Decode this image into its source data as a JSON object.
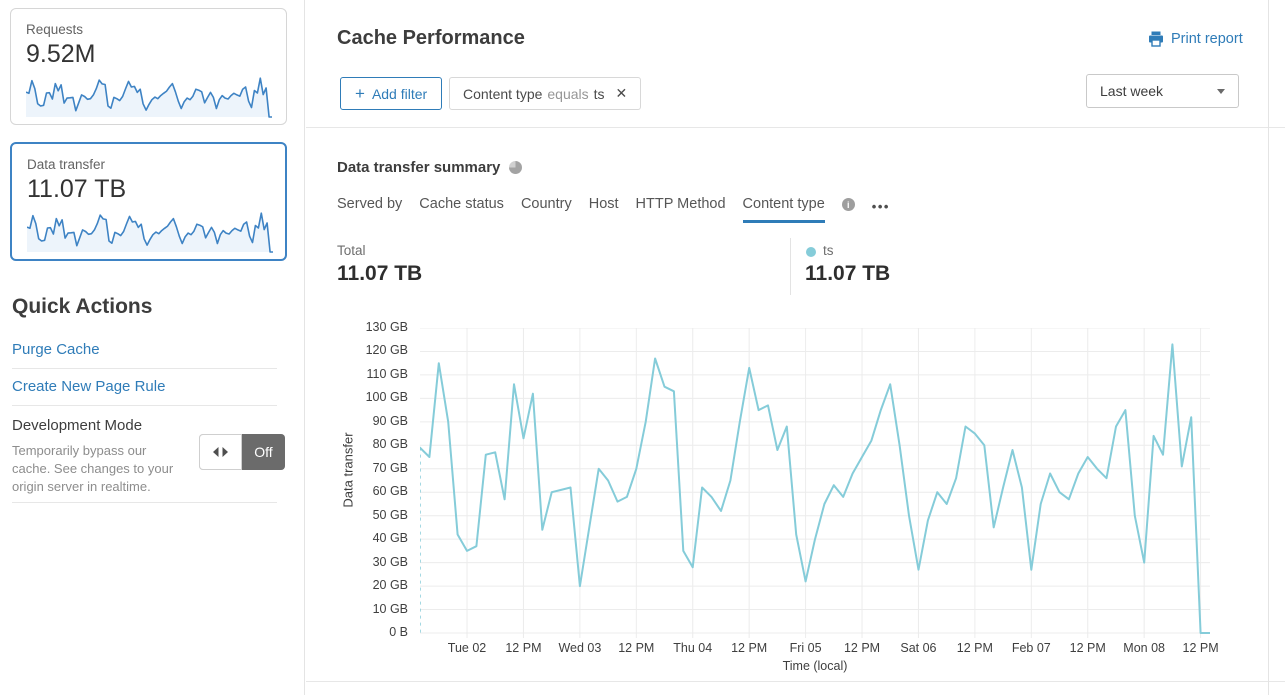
{
  "colors": {
    "accent": "#2f7cb8",
    "chart_line": "#85ccd9",
    "sparkline": "#3e83c4",
    "sparkline_fill": "#edf4fb",
    "toggle_off_bg": "#6b6b6b"
  },
  "sidebar": {
    "cards": [
      {
        "label": "Requests",
        "value": "9.52M",
        "selected": false
      },
      {
        "label": "Data transfer",
        "value": "11.07 TB",
        "selected": true
      }
    ],
    "quick_actions": {
      "title": "Quick Actions",
      "links": [
        "Purge Cache",
        "Create New Page Rule"
      ],
      "development_mode": {
        "title": "Development Mode",
        "description": "Temporarily bypass our cache. See changes to your origin server in realtime.",
        "toggle_state": "Off"
      }
    }
  },
  "header": {
    "title": "Cache Performance",
    "print_report_label": "Print report",
    "add_filter_plus": "+",
    "add_filter_label": "Add filter",
    "filter_chip": {
      "field": "Content type",
      "operator": "equals",
      "value": "ts",
      "remove_glyph": "✕"
    },
    "time_range_selected": "Last week"
  },
  "summary": {
    "title": "Data transfer summary",
    "tabs": [
      {
        "label": "Served by",
        "active": false,
        "info": false
      },
      {
        "label": "Cache status",
        "active": false,
        "info": false
      },
      {
        "label": "Country",
        "active": false,
        "info": false
      },
      {
        "label": "Host",
        "active": false,
        "info": false
      },
      {
        "label": "HTTP Method",
        "active": false,
        "info": false
      },
      {
        "label": "Content type",
        "active": true,
        "info": true
      }
    ],
    "info_glyph": "i",
    "more_tabs_label": "•••",
    "total": {
      "label": "Total",
      "value": "11.07 TB"
    },
    "legend": [
      {
        "name": "ts",
        "value": "11.07 TB"
      }
    ]
  },
  "chart_data": {
    "type": "line",
    "title": "Data transfer summary",
    "ylabel": "Data transfer",
    "xlabel": "Time (local)",
    "ylim": [
      0,
      130
    ],
    "y_unit": "GB",
    "y_ticks": [
      "0 B",
      "10 GB",
      "20 GB",
      "30 GB",
      "40 GB",
      "50 GB",
      "60 GB",
      "70 GB",
      "80 GB",
      "90 GB",
      "100 GB",
      "110 GB",
      "120 GB",
      "130 GB"
    ],
    "x_tick_labels": [
      "Tue 02",
      "12 PM",
      "Wed 03",
      "12 PM",
      "Thu 04",
      "12 PM",
      "Fri 05",
      "12 PM",
      "Sat 06",
      "12 PM",
      "Feb 07",
      "12 PM",
      "Mon 08",
      "12 PM"
    ],
    "x_tick_indices": [
      5,
      11,
      17,
      23,
      29,
      35,
      41,
      47,
      53,
      59,
      65,
      71,
      77,
      83
    ],
    "points_interval_hours": 2,
    "grid": true,
    "legend_position": "top-right",
    "leading_dashed_drop": true,
    "series": [
      {
        "name": "ts",
        "unit": "GB",
        "values": [
          79,
          75,
          115,
          90,
          42,
          35,
          37,
          76,
          77,
          57,
          106,
          83,
          102,
          44,
          60,
          61,
          62,
          20,
          45,
          70,
          65,
          56,
          58,
          70,
          90,
          117,
          105,
          103,
          35,
          28,
          62,
          58,
          52,
          65,
          90,
          113,
          95,
          97,
          78,
          88,
          42,
          22,
          40,
          55,
          63,
          58,
          68,
          75,
          82,
          95,
          106,
          80,
          50,
          27,
          48,
          60,
          55,
          66,
          88,
          85,
          80,
          45,
          62,
          78,
          62,
          27,
          55,
          68,
          60,
          57,
          68,
          75,
          70,
          66,
          88,
          95,
          50,
          30,
          84,
          76,
          123,
          71,
          92,
          0,
          0
        ]
      }
    ]
  }
}
